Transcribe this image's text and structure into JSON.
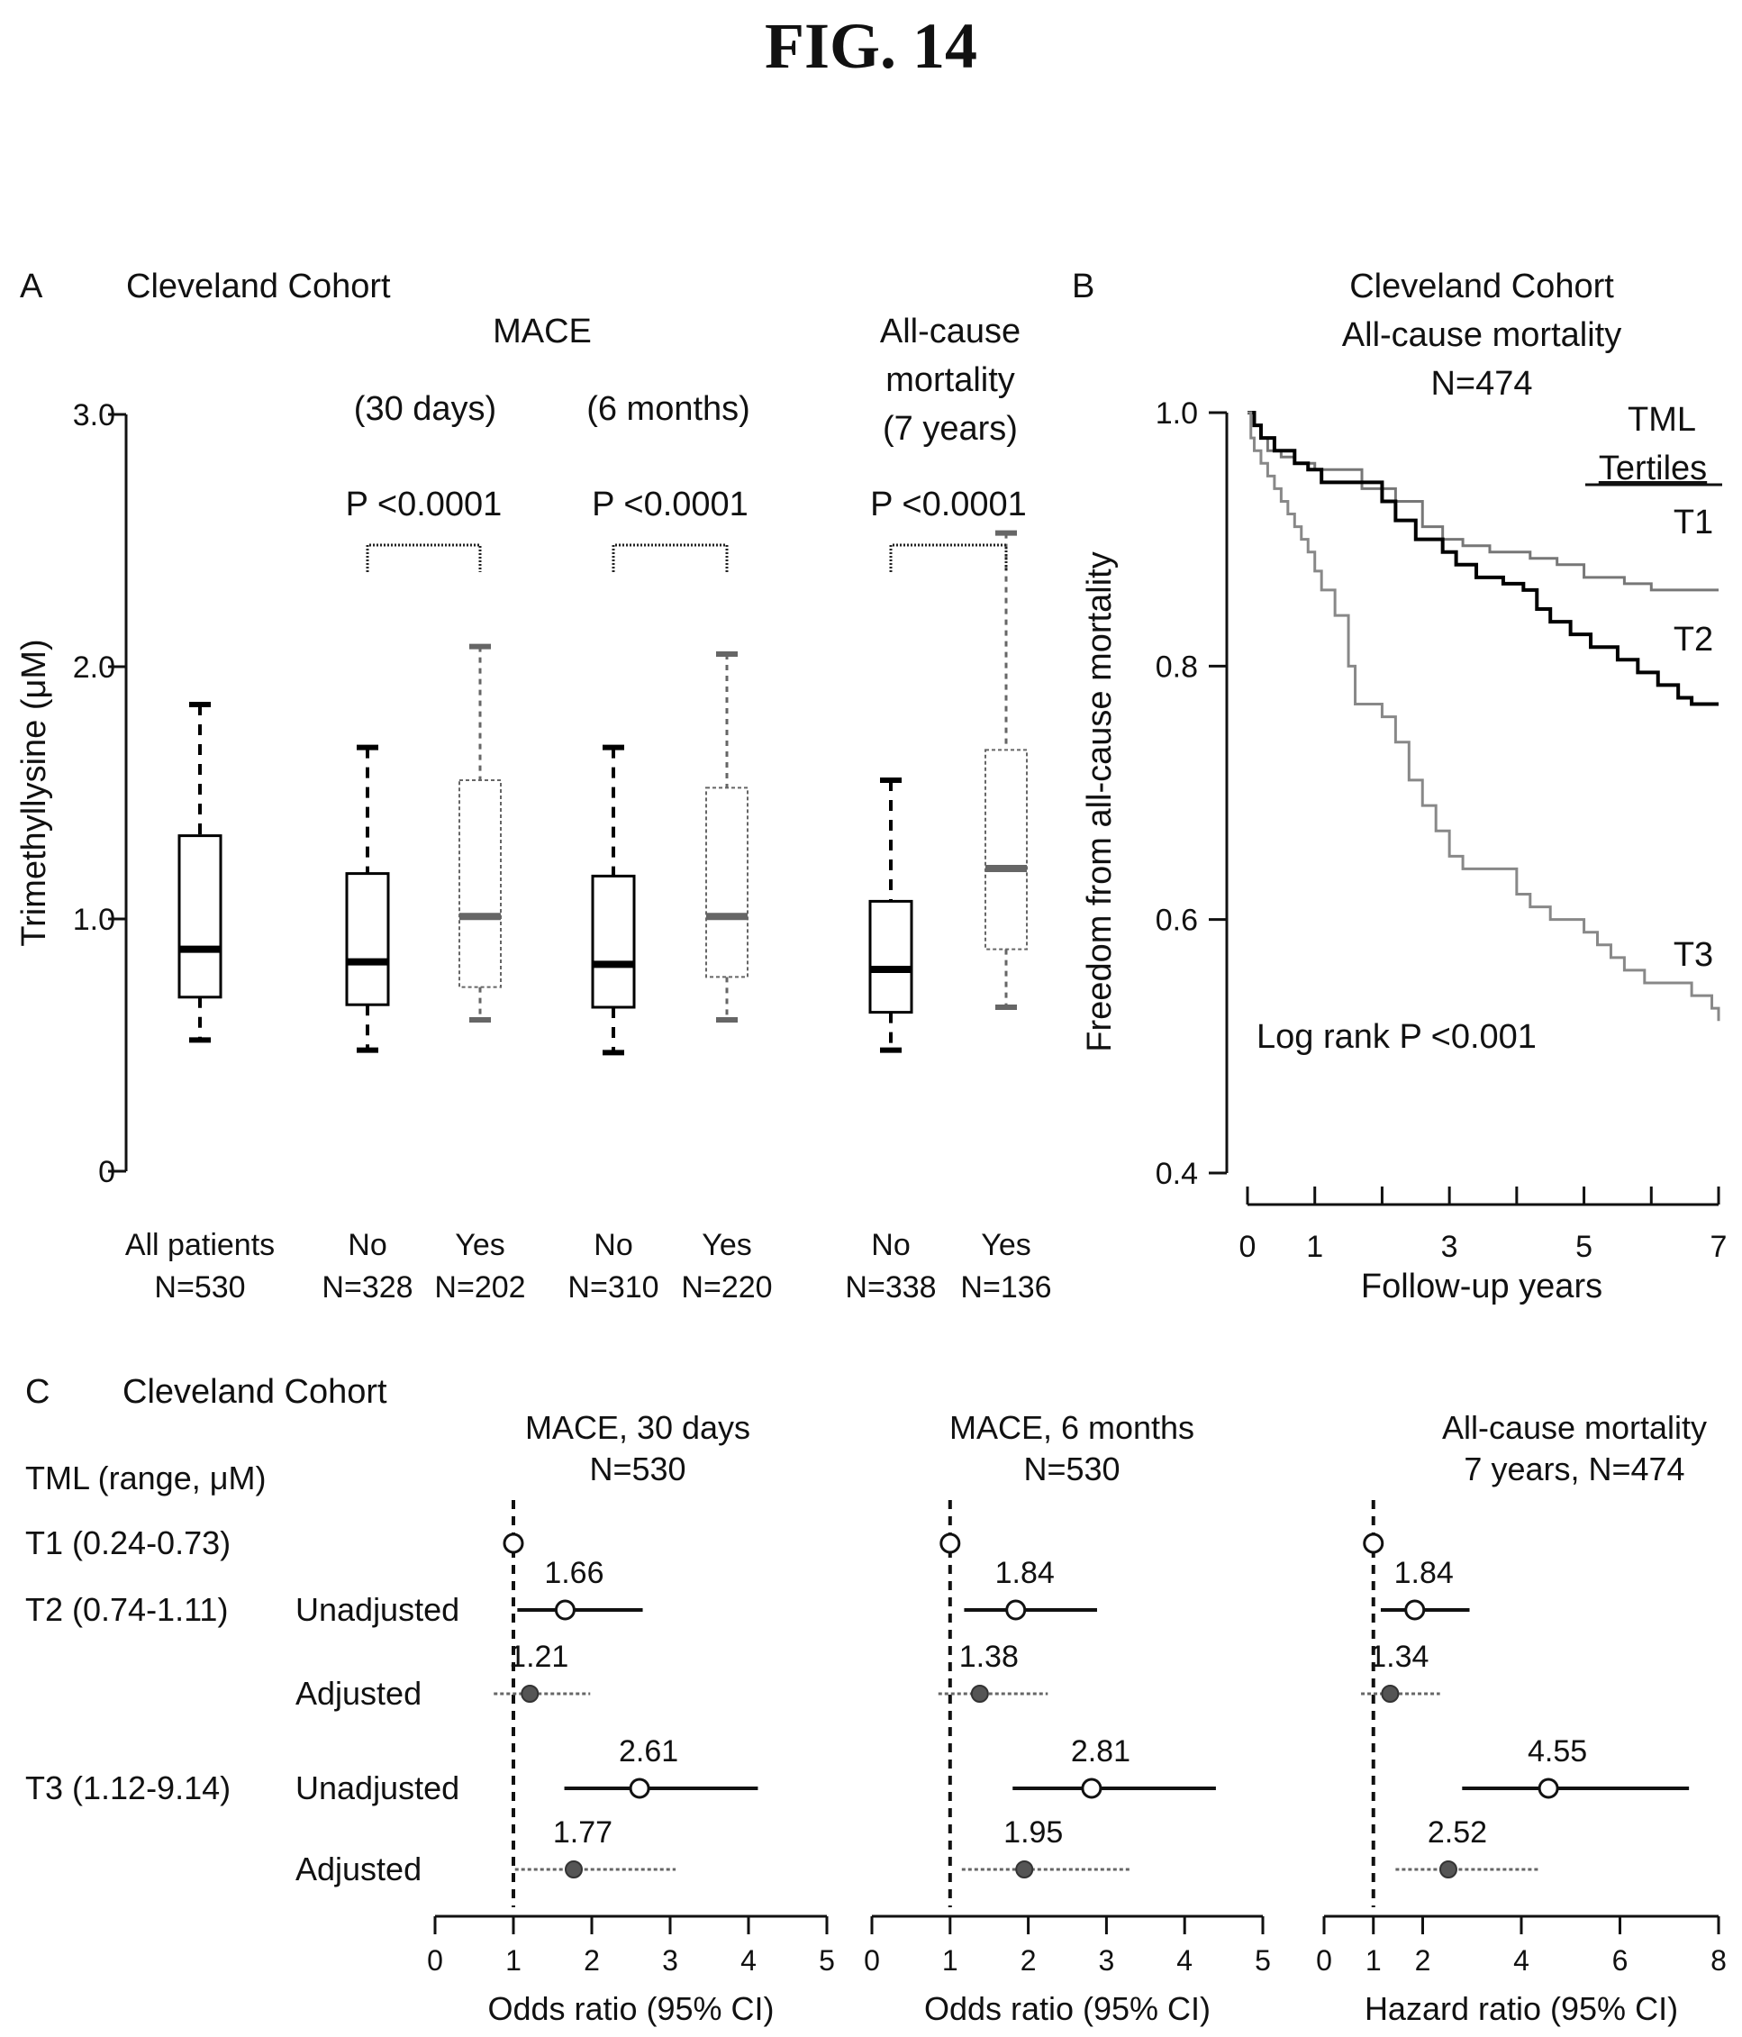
{
  "figure": {
    "title": "FIG. 14"
  },
  "chart_data": [
    {
      "panel": "A",
      "type": "box",
      "title": "Cleveland Cohort",
      "ylabel": "Trimethyllysine (μM)",
      "ylim": [
        0,
        3.0
      ],
      "yticks": [
        "0",
        "1.0",
        "2.0",
        "3.0"
      ],
      "group_titles": [
        {
          "id": "mace",
          "label": "MACE"
        },
        {
          "id": "mace30",
          "label": "(30 days)"
        },
        {
          "id": "mace6",
          "label": "(6 months)"
        },
        {
          "id": "acm1",
          "label": "All-cause"
        },
        {
          "id": "acm2",
          "label": "mortality"
        },
        {
          "id": "acm3",
          "label": "(7 years)"
        }
      ],
      "comparisons": [
        {
          "label": "P <0.0001",
          "between": [
            1,
            2
          ]
        },
        {
          "label": "P <0.0001",
          "between": [
            3,
            4
          ]
        },
        {
          "label": "P <0.0001",
          "between": [
            5,
            6
          ]
        }
      ],
      "boxes": [
        {
          "label": "All patients",
          "n": "N=530",
          "whisker_low": 0.52,
          "q1": 0.69,
          "median": 0.88,
          "q3": 1.33,
          "whisker_high": 1.85,
          "color": "#000000"
        },
        {
          "label": "No",
          "n": "N=328",
          "whisker_low": 0.48,
          "q1": 0.66,
          "median": 0.83,
          "q3": 1.18,
          "whisker_high": 1.68,
          "color": "#000000"
        },
        {
          "label": "Yes",
          "n": "N=202",
          "whisker_low": 0.6,
          "q1": 0.73,
          "median": 1.01,
          "q3": 1.55,
          "whisker_high": 2.08,
          "color": "#666666"
        },
        {
          "label": "No",
          "n": "N=310",
          "whisker_low": 0.47,
          "q1": 0.65,
          "median": 0.82,
          "q3": 1.17,
          "whisker_high": 1.68,
          "color": "#000000"
        },
        {
          "label": "Yes",
          "n": "N=220",
          "whisker_low": 0.6,
          "q1": 0.77,
          "median": 1.01,
          "q3": 1.52,
          "whisker_high": 2.05,
          "color": "#666666"
        },
        {
          "label": "No",
          "n": "N=338",
          "whisker_low": 0.48,
          "q1": 0.63,
          "median": 0.8,
          "q3": 1.07,
          "whisker_high": 1.55,
          "color": "#000000"
        },
        {
          "label": "Yes",
          "n": "N=136",
          "whisker_low": 0.65,
          "q1": 0.88,
          "median": 1.2,
          "q3": 1.67,
          "whisker_high": 2.53,
          "color": "#666666"
        }
      ]
    },
    {
      "panel": "B",
      "type": "line",
      "title_lines": [
        "Cleveland Cohort",
        "All-cause mortality",
        "N=474"
      ],
      "xlabel": "Follow-up years",
      "ylabel": "Freedom from all-cause mortality",
      "xlim": [
        0,
        7
      ],
      "ylim": [
        0.4,
        1.0
      ],
      "xticks": [
        "0",
        "1",
        "3",
        "5",
        "7"
      ],
      "yticks": [
        "0.4",
        "0.6",
        "0.8",
        "1.0"
      ],
      "legend_title_lines": [
        "TML",
        "Tertiles"
      ],
      "annotation": "Log rank P <0.001",
      "series": [
        {
          "name": "T1",
          "color": "#777777",
          "width": 3,
          "x": [
            0,
            0.1,
            0.2,
            0.3,
            0.5,
            0.7,
            1.0,
            1.3,
            1.6,
            1.7,
            2.2,
            2.6,
            2.9,
            3.2,
            3.6,
            4.2,
            4.6,
            5.0,
            5.6,
            6.0,
            7.0
          ],
          "y": [
            1.0,
            0.99,
            0.98,
            0.97,
            0.965,
            0.96,
            0.955,
            0.955,
            0.955,
            0.94,
            0.93,
            0.91,
            0.9,
            0.895,
            0.89,
            0.885,
            0.88,
            0.87,
            0.865,
            0.86,
            0.86
          ]
        },
        {
          "name": "T2",
          "color": "#000000",
          "width": 4,
          "x": [
            0,
            0.1,
            0.2,
            0.4,
            0.7,
            0.9,
            1.1,
            1.5,
            1.9,
            2.0,
            2.2,
            2.5,
            2.9,
            3.1,
            3.4,
            3.8,
            4.1,
            4.3,
            4.5,
            4.8,
            5.1,
            5.5,
            5.8,
            6.1,
            6.4,
            6.6,
            7.0
          ],
          "y": [
            1.0,
            0.99,
            0.98,
            0.97,
            0.96,
            0.955,
            0.945,
            0.945,
            0.945,
            0.93,
            0.915,
            0.9,
            0.89,
            0.88,
            0.87,
            0.865,
            0.86,
            0.845,
            0.835,
            0.825,
            0.815,
            0.805,
            0.795,
            0.785,
            0.775,
            0.77,
            0.77
          ]
        },
        {
          "name": "T3",
          "color": "#888888",
          "width": 3,
          "x": [
            0,
            0.05,
            0.1,
            0.2,
            0.3,
            0.4,
            0.5,
            0.6,
            0.7,
            0.8,
            0.9,
            1.0,
            1.1,
            1.3,
            1.5,
            1.6,
            2.0,
            2.2,
            2.4,
            2.6,
            2.8,
            3.0,
            3.2,
            4.0,
            4.2,
            4.5,
            5.0,
            5.2,
            5.4,
            5.6,
            5.9,
            6.3,
            6.6,
            6.9,
            7.0
          ],
          "y": [
            1.0,
            0.98,
            0.97,
            0.96,
            0.95,
            0.94,
            0.93,
            0.92,
            0.91,
            0.9,
            0.89,
            0.875,
            0.86,
            0.84,
            0.8,
            0.77,
            0.76,
            0.74,
            0.71,
            0.69,
            0.67,
            0.65,
            0.64,
            0.62,
            0.61,
            0.6,
            0.59,
            0.58,
            0.57,
            0.56,
            0.55,
            0.55,
            0.54,
            0.53,
            0.52
          ]
        }
      ]
    },
    {
      "panel": "C",
      "type": "forest",
      "title": "Cleveland Cohort",
      "row_header": "TML (range, μM)",
      "row_labels": [
        {
          "tertile": "T1 (0.24-0.73)",
          "model": ""
        },
        {
          "tertile": "T2 (0.74-1.11)",
          "model": "Unadjusted"
        },
        {
          "tertile": "",
          "model": "Adjusted"
        },
        {
          "tertile": "T3 (1.12-9.14)",
          "model": "Unadjusted"
        },
        {
          "tertile": "",
          "model": "Adjusted"
        }
      ],
      "subplots": [
        {
          "title_lines": [
            "MACE, 30 days",
            "N=530"
          ],
          "xlabel": "Odds ratio (95% CI)",
          "xlim": [
            0,
            5
          ],
          "xticks": [
            "0",
            "1",
            "2",
            "3",
            "4",
            "5"
          ],
          "reference": 1,
          "rows": [
            {
              "est": 1.0,
              "lo": null,
              "hi": null,
              "label": "",
              "style": "ref"
            },
            {
              "est": 1.66,
              "lo": 1.05,
              "hi": 2.65,
              "label": "1.66",
              "style": "unadj"
            },
            {
              "est": 1.21,
              "lo": 0.75,
              "hi": 1.98,
              "label": "1.21",
              "style": "adj"
            },
            {
              "est": 2.61,
              "lo": 1.65,
              "hi": 4.12,
              "label": "2.61",
              "style": "unadj"
            },
            {
              "est": 1.77,
              "lo": 1.02,
              "hi": 3.07,
              "label": "1.77",
              "style": "adj"
            }
          ]
        },
        {
          "title_lines": [
            "MACE, 6 months",
            "N=530"
          ],
          "xlabel": "Odds ratio (95% CI)",
          "xlim": [
            0,
            5
          ],
          "xticks": [
            "0",
            "1",
            "2",
            "3",
            "4",
            "5"
          ],
          "reference": 1,
          "rows": [
            {
              "est": 1.0,
              "lo": null,
              "hi": null,
              "label": "",
              "style": "ref"
            },
            {
              "est": 1.84,
              "lo": 1.18,
              "hi": 2.88,
              "label": "1.84",
              "style": "unadj"
            },
            {
              "est": 1.38,
              "lo": 0.85,
              "hi": 2.25,
              "label": "1.38",
              "style": "adj"
            },
            {
              "est": 2.81,
              "lo": 1.8,
              "hi": 4.4,
              "label": "2.81",
              "style": "unadj"
            },
            {
              "est": 1.95,
              "lo": 1.15,
              "hi": 3.3,
              "label": "1.95",
              "style": "adj"
            }
          ]
        },
        {
          "title_lines": [
            "All-cause mortality",
            "7 years, N=474"
          ],
          "xlabel": "Hazard ratio (95% CI)",
          "xlim": [
            0,
            8
          ],
          "xticks": [
            "0",
            "1",
            "2",
            "4",
            "6",
            "8"
          ],
          "reference": 1,
          "rows": [
            {
              "est": 1.0,
              "lo": null,
              "hi": null,
              "label": "",
              "style": "ref"
            },
            {
              "est": 1.84,
              "lo": 1.15,
              "hi": 2.95,
              "label": "1.84",
              "style": "unadj"
            },
            {
              "est": 1.34,
              "lo": 0.75,
              "hi": 2.35,
              "label": "1.34",
              "style": "adj"
            },
            {
              "est": 4.55,
              "lo": 2.8,
              "hi": 7.4,
              "label": "4.55",
              "style": "unadj"
            },
            {
              "est": 2.52,
              "lo": 1.45,
              "hi": 4.35,
              "label": "2.52",
              "style": "adj"
            }
          ]
        }
      ]
    }
  ]
}
